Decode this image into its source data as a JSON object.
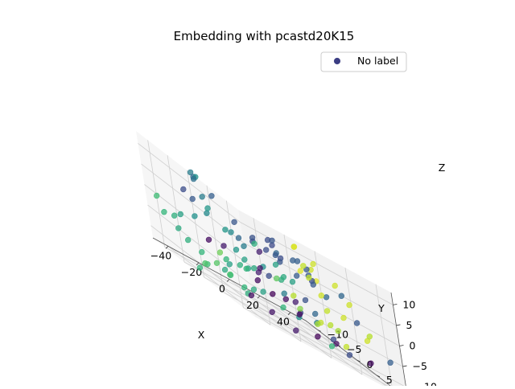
{
  "chart_data": {
    "type": "scatter",
    "projection": "3d",
    "title": "Embedding with pcastd20K15",
    "xlabel": "X",
    "ylabel": "Y",
    "zlabel": "Z",
    "xlim": [
      -50,
      50
    ],
    "ylim": [
      -13,
      13
    ],
    "zlim": [
      -13,
      13
    ],
    "xticks": [
      -40,
      -20,
      0,
      20,
      40
    ],
    "yticks": [
      -10,
      -5,
      0,
      5,
      10
    ],
    "zticks": [
      -10,
      -5,
      0,
      5,
      10
    ],
    "xticklabels": [
      "−40",
      "−20",
      "0",
      "20",
      "40"
    ],
    "yticklabels": [
      "−10",
      "−5",
      "0",
      "5",
      "10"
    ],
    "zticklabels": [
      "−10",
      "−5",
      "0",
      "5",
      "10"
    ],
    "grid": true,
    "legend": {
      "placement": "top-right",
      "entries": [
        {
          "label": "No label",
          "color": "#3b3d83"
        }
      ]
    },
    "colormap": "viridis",
    "points": [
      [
        -38,
        -4,
        12,
        0.45
      ],
      [
        -34,
        -5,
        11,
        0.4
      ],
      [
        -30,
        -6,
        11,
        0.5
      ],
      [
        -29,
        -7,
        10,
        0.42
      ],
      [
        -40,
        -6,
        6,
        0.3
      ],
      [
        -37,
        -5,
        5,
        0.35
      ],
      [
        -28,
        -3,
        9,
        0.38
      ],
      [
        -20,
        8,
        8,
        0.3
      ],
      [
        -15,
        7,
        7,
        0.28
      ],
      [
        -12,
        6,
        8,
        0.33
      ],
      [
        -5,
        10,
        5,
        0.95
      ],
      [
        0,
        11,
        7,
        0.92
      ],
      [
        2,
        9,
        6,
        0.35
      ],
      [
        -8,
        5,
        5,
        0.4
      ],
      [
        -3,
        4,
        4,
        0.3
      ],
      [
        5,
        7,
        6,
        0.9
      ],
      [
        10,
        8,
        4,
        0.95
      ],
      [
        12,
        6,
        3,
        0.3
      ],
      [
        8,
        3,
        5,
        0.38
      ],
      [
        15,
        5,
        2,
        0.35
      ],
      [
        18,
        7,
        1,
        0.4
      ],
      [
        22,
        4,
        0,
        0.92
      ],
      [
        20,
        2,
        3,
        0.35
      ],
      [
        25,
        0,
        2,
        0.9
      ],
      [
        14,
        1,
        1,
        0.36
      ],
      [
        6,
        0,
        2,
        0.34
      ],
      [
        0,
        -1,
        3,
        0.3
      ],
      [
        -6,
        -2,
        4,
        0.32
      ],
      [
        -10,
        1,
        2,
        0.12
      ],
      [
        -18,
        0,
        1,
        0.45
      ],
      [
        -22,
        -3,
        2,
        0.52
      ],
      [
        -26,
        -6,
        3,
        0.48
      ],
      [
        -30,
        -8,
        0,
        0.5
      ],
      [
        -35,
        -10,
        -2,
        0.55
      ],
      [
        -42,
        -9,
        -3,
        0.6
      ],
      [
        -44,
        -11,
        -4,
        0.62
      ],
      [
        -45,
        -12,
        -1,
        0.65
      ],
      [
        -38,
        -10,
        -6,
        0.58
      ],
      [
        -25,
        -7,
        -4,
        0.05
      ],
      [
        -20,
        -5,
        -3,
        0.1
      ],
      [
        -14,
        -4,
        -2,
        0.52
      ],
      [
        -10,
        -3,
        -5,
        0.55
      ],
      [
        -8,
        -6,
        -6,
        0.6
      ],
      [
        -4,
        -2,
        -3,
        0.08
      ],
      [
        -2,
        -4,
        -7,
        0.05
      ],
      [
        2,
        -5,
        -5,
        0.12
      ],
      [
        4,
        -3,
        -4,
        0.3
      ],
      [
        8,
        -1,
        -6,
        0.45
      ],
      [
        10,
        -2,
        -3,
        0.6
      ],
      [
        12,
        0,
        -5,
        0.88
      ],
      [
        15,
        2,
        -4,
        0.32
      ],
      [
        18,
        3,
        -6,
        0.4
      ],
      [
        22,
        5,
        -3,
        0.9
      ],
      [
        28,
        7,
        -2,
        0.92
      ],
      [
        32,
        9,
        -1,
        0.35
      ],
      [
        35,
        10,
        -4,
        0.92
      ],
      [
        30,
        4,
        -7,
        0.85
      ],
      [
        26,
        1,
        -8,
        0.9
      ],
      [
        20,
        -2,
        -9,
        0.3
      ],
      [
        16,
        -4,
        -8,
        0.05
      ],
      [
        12,
        -6,
        -9,
        0.02
      ],
      [
        8,
        -7,
        -10,
        0.55
      ],
      [
        4,
        -8,
        -11,
        0.58
      ],
      [
        0,
        -9,
        -12,
        0.62
      ],
      [
        -6,
        -10,
        -11,
        0.65
      ],
      [
        -12,
        -11,
        -10,
        0.7
      ],
      [
        -18,
        -12,
        -12,
        0.68
      ],
      [
        -24,
        -10,
        -9,
        0.62
      ],
      [
        -30,
        -11,
        -8,
        0.6
      ],
      [
        -16,
        -8,
        -6,
        0.75
      ],
      [
        -8,
        -9,
        -8,
        0.55
      ],
      [
        6,
        -10,
        -7,
        0.62
      ],
      [
        14,
        -11,
        -6,
        0.58
      ],
      [
        24,
        -9,
        -5,
        0.72
      ],
      [
        30,
        -6,
        -9,
        0.8
      ],
      [
        36,
        -4,
        -10,
        0.85
      ],
      [
        40,
        -2,
        -8,
        0.88
      ],
      [
        44,
        0,
        -11,
        0.9
      ],
      [
        38,
        3,
        -12,
        0.3
      ],
      [
        34,
        -8,
        -11,
        0.05
      ],
      [
        28,
        -10,
        -12,
        0.62
      ],
      [
        18,
        10,
        6,
        0.92
      ],
      [
        24,
        9,
        4,
        0.4
      ],
      [
        -2,
        6,
        0,
        0.55
      ],
      [
        -14,
        3,
        -1,
        0.5
      ],
      [
        -24,
        2,
        -2,
        0.55
      ],
      [
        -32,
        0,
        -5,
        0.62
      ],
      [
        -36,
        2,
        -8,
        0.68
      ],
      [
        -28,
        4,
        -10,
        0.05
      ],
      [
        -20,
        6,
        -11,
        0.08
      ],
      [
        -10,
        8,
        -12,
        0.1
      ],
      [
        0,
        10,
        -10,
        0.02
      ],
      [
        6,
        12,
        -8,
        0.3
      ],
      [
        10,
        11,
        -9,
        0.06
      ],
      [
        -4,
        12,
        -6,
        0.45
      ],
      [
        -12,
        10,
        -4,
        0.12
      ],
      [
        -16,
        12,
        -7,
        0.5
      ],
      [
        2,
        2,
        -1,
        0.58
      ],
      [
        -6,
        -6,
        1,
        0.4
      ],
      [
        16,
        -5,
        2,
        0.35
      ],
      [
        26,
        -3,
        4,
        0.38
      ],
      [
        32,
        -1,
        6,
        0.92
      ],
      [
        8,
        4,
        9,
        0.95
      ],
      [
        -2,
        8,
        10,
        0.9
      ],
      [
        -26,
        6,
        5,
        0.3
      ],
      [
        -32,
        4,
        7,
        0.34
      ],
      [
        -20,
        -9,
        6,
        0.45
      ],
      [
        -10,
        -12,
        3,
        0.52
      ],
      [
        4,
        -12,
        0,
        0.48
      ],
      [
        12,
        -9,
        1,
        0.6
      ],
      [
        20,
        -7,
        -1,
        0.55
      ],
      [
        36,
        6,
        2,
        0.92
      ],
      [
        42,
        8,
        -3,
        0.88
      ],
      [
        44,
        12,
        -6,
        0.38
      ],
      [
        30,
        12,
        -9,
        0.05
      ],
      [
        14,
        8,
        -11,
        0.62
      ],
      [
        -40,
        8,
        -9,
        0.6
      ],
      [
        -44,
        4,
        -7,
        0.58
      ],
      [
        -46,
        0,
        -9,
        0.65
      ],
      [
        -42,
        -4,
        -12,
        0.62
      ]
    ]
  }
}
